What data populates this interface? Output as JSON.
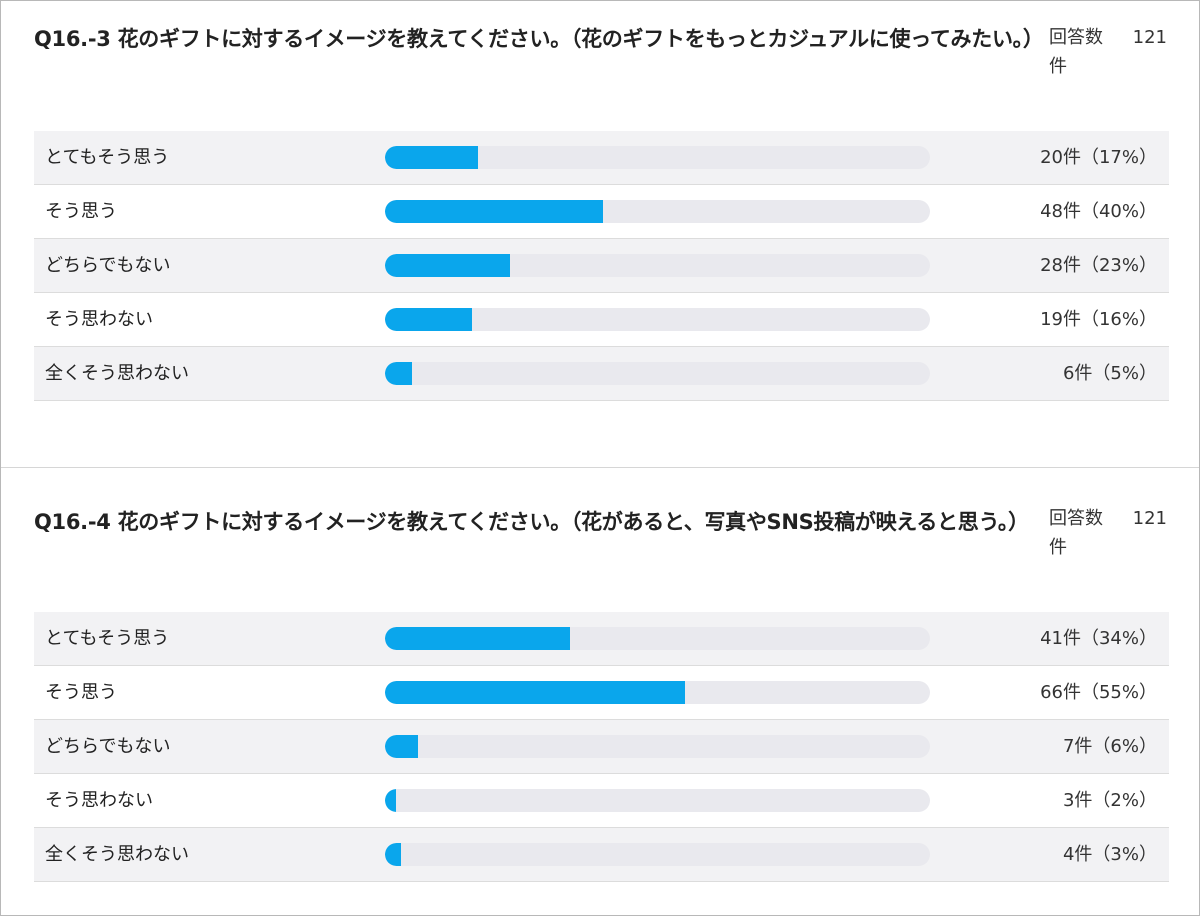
{
  "chart_data": [
    {
      "type": "bar",
      "title": "Q16.-3 花のギフトに対するイメージを教えてください。（花のギフトをもっとカジュアルに使ってみたい。）",
      "response_label": "回答数件",
      "response_count": "121",
      "categories": [
        "とてもそう思う",
        "そう思う",
        "どちらでもない",
        "そう思わない",
        "全くそう思わない"
      ],
      "counts": [
        20,
        48,
        28,
        19,
        6
      ],
      "percents": [
        17,
        40,
        23,
        16,
        5
      ],
      "value_labels": [
        "20件（17%）",
        "48件（40%）",
        "28件（23%）",
        "19件（16%）",
        "6件（5%）"
      ]
    },
    {
      "type": "bar",
      "title": "Q16.-4 花のギフトに対するイメージを教えてください。（花があると、写真やSNS投稿が映えると思う。）",
      "response_label": "回答数件",
      "response_count": "121",
      "categories": [
        "とてもそう思う",
        "そう思う",
        "どちらでもない",
        "そう思わない",
        "全くそう思わない"
      ],
      "counts": [
        41,
        66,
        7,
        3,
        4
      ],
      "percents": [
        34,
        55,
        6,
        2,
        3
      ],
      "value_labels": [
        "41件（34%）",
        "66件（55%）",
        "7件（6%）",
        "3件（2%）",
        "4件（3%）"
      ]
    }
  ],
  "colors": {
    "bar_fill": "#0aa6ec",
    "bar_track": "#e9e9ee",
    "row_alt": "#f2f2f4"
  }
}
